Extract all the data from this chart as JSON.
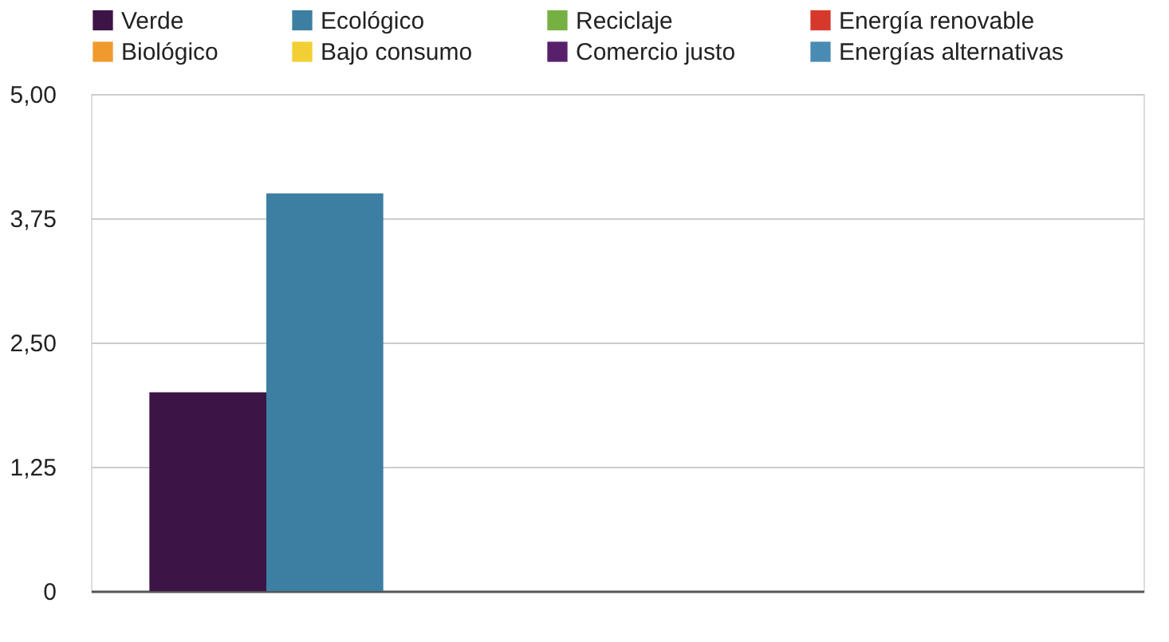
{
  "chart_data": {
    "type": "bar",
    "categories": [
      null
    ],
    "series": [
      {
        "name": "Verde",
        "color": "#3d1446",
        "values": [
          2
        ]
      },
      {
        "name": "Ecológico",
        "color": "#3d7fa2",
        "values": [
          4
        ]
      },
      {
        "name": "Reciclaje",
        "color": "#76b043",
        "values": [
          null
        ]
      },
      {
        "name": "Energía renovable",
        "color": "#d7382c",
        "values": [
          null
        ]
      },
      {
        "name": "Biológico",
        "color": "#f09a2e",
        "values": [
          null
        ]
      },
      {
        "name": "Bajo consumo",
        "color": "#f2cf35",
        "values": [
          null
        ]
      },
      {
        "name": "Comercio justo",
        "color": "#58206a",
        "values": [
          null
        ]
      },
      {
        "name": "Energías alternativas",
        "color": "#4a8bb3",
        "values": [
          null
        ]
      }
    ],
    "ylim": [
      0,
      5
    ],
    "yticks": [
      0,
      {
        "value": 1.25,
        "label": "1,25"
      },
      {
        "value": 2.5,
        "label": "2,50"
      },
      {
        "value": 3.75,
        "label": "3,75"
      },
      {
        "value": 5,
        "label": "5,00"
      }
    ],
    "grid": "y",
    "legend": "top",
    "tick_labels": "y"
  }
}
